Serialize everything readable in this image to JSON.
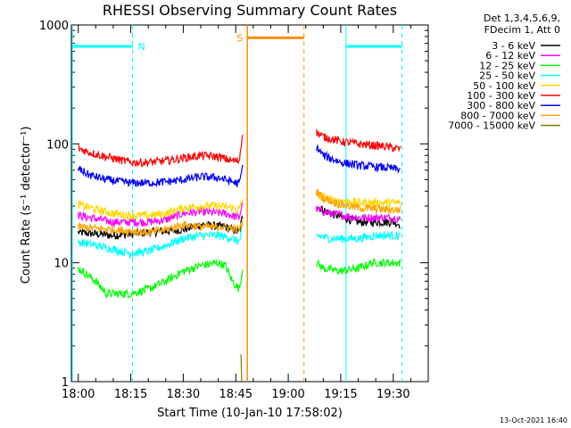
{
  "chart_data": {
    "type": "line",
    "title": "RHESSI Observing Summary Count Rates",
    "xlabel": "Start Time (10-Jan-10 17:58:02)",
    "ylabel": "Count Rate (s⁻¹ detector⁻¹)",
    "y_scale": "log",
    "ylim": [
      1,
      1000
    ],
    "xlim": [
      "17:58:02",
      "19:38:00"
    ],
    "x_ticks": [
      "18:00",
      "18:15",
      "18:30",
      "18:45",
      "19:00",
      "19:15",
      "19:30"
    ],
    "x_tick_minutes": [
      0,
      15,
      30,
      45,
      60,
      75,
      90
    ],
    "y_ticks": [
      "1",
      "10",
      "100",
      "1000"
    ],
    "y_tick_values": [
      1,
      10,
      100,
      1000
    ],
    "legend_header": [
      "Det 1,3,4,5,6,9,",
      "FDecim 1, Att 0"
    ],
    "legend_position": "right",
    "footer": "13-Oct-2021 16:40",
    "series": [
      {
        "name": "3 - 6 keV",
        "color": "#000000",
        "points": [
          [
            0,
            18
          ],
          [
            10,
            17
          ],
          [
            20,
            18
          ],
          [
            30,
            19
          ],
          [
            35,
            21
          ],
          [
            42,
            20
          ],
          [
            46,
            18
          ],
          [
            47,
            25
          ],
          [
            60,
            null
          ],
          [
            67,
            null
          ],
          [
            68,
            30
          ],
          [
            72,
            26
          ],
          [
            80,
            22
          ],
          [
            90,
            22
          ],
          [
            92,
            21
          ]
        ]
      },
      {
        "name": "6 - 12 keV",
        "color": "#ff00ff",
        "points": [
          [
            0,
            25
          ],
          [
            10,
            22
          ],
          [
            20,
            22
          ],
          [
            25,
            23
          ],
          [
            30,
            26
          ],
          [
            35,
            27
          ],
          [
            42,
            26
          ],
          [
            46,
            24
          ],
          [
            47,
            33
          ],
          [
            60,
            null
          ],
          [
            67,
            null
          ],
          [
            68,
            28
          ],
          [
            72,
            26
          ],
          [
            80,
            24
          ],
          [
            90,
            24
          ],
          [
            92,
            23
          ]
        ]
      },
      {
        "name": "12 - 25 keV",
        "color": "#00ff00",
        "points": [
          [
            0,
            9
          ],
          [
            5,
            7
          ],
          [
            8,
            5.5
          ],
          [
            15,
            5.5
          ],
          [
            20,
            6
          ],
          [
            25,
            7
          ],
          [
            30,
            8.5
          ],
          [
            35,
            9.5
          ],
          [
            40,
            10
          ],
          [
            42,
            9.5
          ],
          [
            44,
            7
          ],
          [
            46,
            6
          ],
          [
            47,
            9
          ],
          [
            60,
            null
          ],
          [
            67,
            null
          ],
          [
            68,
            10
          ],
          [
            70,
            9
          ],
          [
            75,
            8.5
          ],
          [
            80,
            9
          ],
          [
            84,
            10
          ],
          [
            90,
            10
          ],
          [
            92,
            10
          ]
        ]
      },
      {
        "name": "25 - 50 keV",
        "color": "#00ffff",
        "points": [
          [
            0,
            15
          ],
          [
            5,
            14
          ],
          [
            10,
            13
          ],
          [
            15,
            12
          ],
          [
            20,
            12.5
          ],
          [
            25,
            14
          ],
          [
            30,
            16
          ],
          [
            35,
            17
          ],
          [
            40,
            17
          ],
          [
            44,
            16
          ],
          [
            46,
            15
          ],
          [
            47,
            20
          ],
          [
            60,
            null
          ],
          [
            67,
            null
          ],
          [
            68,
            17
          ],
          [
            72,
            16
          ],
          [
            80,
            16
          ],
          [
            85,
            17
          ],
          [
            92,
            17
          ]
        ]
      },
      {
        "name": "50 - 100 keV",
        "color": "#ffd700",
        "points": [
          [
            0,
            31
          ],
          [
            5,
            28
          ],
          [
            10,
            26
          ],
          [
            15,
            25
          ],
          [
            20,
            25
          ],
          [
            25,
            26
          ],
          [
            30,
            29
          ],
          [
            35,
            30
          ],
          [
            40,
            30
          ],
          [
            44,
            29
          ],
          [
            46,
            28
          ],
          [
            47,
            34
          ],
          [
            60,
            null
          ],
          [
            67,
            null
          ],
          [
            68,
            38
          ],
          [
            72,
            34
          ],
          [
            80,
            32
          ],
          [
            90,
            32
          ],
          [
            92,
            32
          ]
        ]
      },
      {
        "name": "100 - 300 keV",
        "color": "#ff0000",
        "points": [
          [
            0,
            92
          ],
          [
            3,
            85
          ],
          [
            8,
            78
          ],
          [
            15,
            70
          ],
          [
            20,
            70
          ],
          [
            25,
            72
          ],
          [
            30,
            76
          ],
          [
            35,
            80
          ],
          [
            40,
            78
          ],
          [
            44,
            72
          ],
          [
            46,
            72
          ],
          [
            47,
            130
          ],
          [
            60,
            null
          ],
          [
            67,
            null
          ],
          [
            68,
            125
          ],
          [
            70,
            115
          ],
          [
            75,
            105
          ],
          [
            80,
            100
          ],
          [
            88,
            95
          ],
          [
            92,
            90
          ]
        ]
      },
      {
        "name": "300 - 800 keV",
        "color": "#0000ff",
        "points": [
          [
            0,
            62
          ],
          [
            3,
            55
          ],
          [
            8,
            50
          ],
          [
            15,
            47
          ],
          [
            20,
            47
          ],
          [
            25,
            48
          ],
          [
            30,
            50
          ],
          [
            35,
            53
          ],
          [
            40,
            52
          ],
          [
            44,
            48
          ],
          [
            46,
            46
          ],
          [
            47,
            65
          ],
          [
            60,
            null
          ],
          [
            67,
            null
          ],
          [
            68,
            95
          ],
          [
            70,
            80
          ],
          [
            75,
            70
          ],
          [
            80,
            66
          ],
          [
            88,
            63
          ],
          [
            92,
            61
          ]
        ]
      },
      {
        "name": "800 - 7000 keV",
        "color": "#ffa500",
        "points": [
          [
            0,
            20
          ],
          [
            10,
            19
          ],
          [
            20,
            18
          ],
          [
            25,
            19
          ],
          [
            30,
            21
          ],
          [
            35,
            20
          ],
          [
            42,
            20
          ],
          [
            46,
            19
          ],
          [
            47,
            22
          ],
          [
            60,
            null
          ],
          [
            67,
            null
          ],
          [
            68,
            40
          ],
          [
            70,
            35
          ],
          [
            75,
            31
          ],
          [
            80,
            29
          ],
          [
            88,
            28
          ],
          [
            92,
            28
          ]
        ]
      },
      {
        "name": "7000 - 15000 keV",
        "color": "#808000",
        "points": [
          [
            46.5,
            1.7
          ],
          [
            46.7,
            1
          ]
        ]
      }
    ],
    "annotations": [
      {
        "label": "N",
        "color": "#00ffff"
      },
      {
        "label": "S",
        "color": "#ff8c00"
      }
    ]
  }
}
